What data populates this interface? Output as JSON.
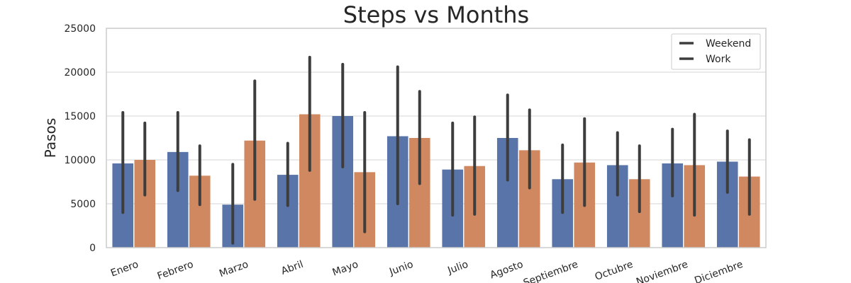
{
  "chart_data": {
    "type": "bar",
    "title": "Steps vs Months",
    "xlabel": "",
    "ylabel": "Pasos",
    "ylim": [
      0,
      25000
    ],
    "yticks": [
      0,
      5000,
      10000,
      15000,
      20000,
      25000
    ],
    "grid": "horizontal",
    "legend_position": "top-right",
    "categories": [
      "Enero",
      "Febrero",
      "Marzo",
      "Abril",
      "Mayo",
      "Junio",
      "Julio",
      "Agosto",
      "Septiembre",
      "Octubre",
      "Noviembre",
      "Diciembre"
    ],
    "series": [
      {
        "name": "Weekend",
        "color": "#5874a8",
        "values": [
          9600,
          10900,
          4900,
          8300,
          15000,
          12700,
          8900,
          12500,
          7800,
          9400,
          9600,
          9800
        ],
        "error_low": [
          4000,
          6500,
          500,
          4800,
          9200,
          5000,
          3700,
          7700,
          4000,
          6000,
          5900,
          6300
        ],
        "error_high": [
          15400,
          15400,
          9500,
          11900,
          20900,
          20600,
          14200,
          17400,
          11700,
          13100,
          13500,
          13300
        ]
      },
      {
        "name": "Work",
        "color": "#cf8860",
        "values": [
          10000,
          8200,
          12200,
          15200,
          8600,
          12500,
          9300,
          11100,
          9700,
          7800,
          9400,
          8100
        ],
        "error_low": [
          6000,
          4900,
          5500,
          8800,
          1800,
          7300,
          3800,
          6800,
          4800,
          4100,
          3700,
          3800
        ],
        "error_high": [
          14200,
          11600,
          19000,
          21700,
          15400,
          17800,
          14900,
          15700,
          14700,
          11600,
          15200,
          12300
        ]
      }
    ]
  }
}
